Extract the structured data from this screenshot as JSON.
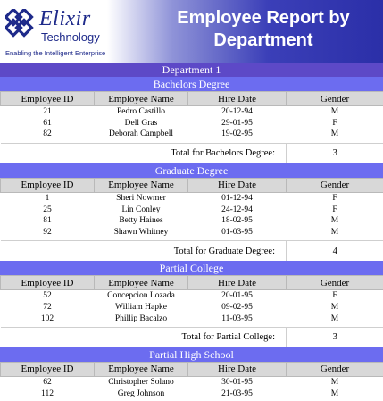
{
  "brand": {
    "name": "Elixir",
    "sub": "Technology",
    "tagline": "Enabling the Intelligent Enterprise",
    "logo_icon": "elixir-knot-icon",
    "accent": "#1e2a8a"
  },
  "report": {
    "title_line1": "Employee Report by",
    "title_line2": "Department",
    "department": "Department 1"
  },
  "columns": [
    "Employee ID",
    "Employee Name",
    "Hire Date",
    "Gender"
  ],
  "groups": [
    {
      "name": "Bachelors Degree",
      "rows": [
        [
          "21",
          "Pedro Castillo",
          "20-12-94",
          "M"
        ],
        [
          "61",
          "Dell Gras",
          "29-01-95",
          "F"
        ],
        [
          "82",
          "Deborah Campbell",
          "19-02-95",
          "M"
        ]
      ],
      "total_label": "Total for Bachelors Degree:",
      "total": "3"
    },
    {
      "name": "Graduate Degree",
      "rows": [
        [
          "1",
          "Sheri Nowmer",
          "01-12-94",
          "F"
        ],
        [
          "25",
          "Lin Conley",
          "24-12-94",
          "F"
        ],
        [
          "81",
          "Betty Haines",
          "18-02-95",
          "M"
        ],
        [
          "92",
          "Shawn Whitney",
          "01-03-95",
          "M"
        ]
      ],
      "total_label": "Total for Graduate Degree:",
      "total": "4"
    },
    {
      "name": "Partial College",
      "rows": [
        [
          "52",
          "Concepcion Lozada",
          "20-01-95",
          "F"
        ],
        [
          "72",
          "William Hapke",
          "09-02-95",
          "M"
        ],
        [
          "102",
          "Phillip Bacalzo",
          "11-03-95",
          "M"
        ]
      ],
      "total_label": "Total for Partial College:",
      "total": "3"
    },
    {
      "name": "Partial High School",
      "rows": [
        [
          "62",
          "Christopher Solano",
          "30-01-95",
          "M"
        ],
        [
          "112",
          "Greg Johnson",
          "21-03-95",
          "M"
        ]
      ]
    }
  ],
  "colors": {
    "department_bar": "#5d49c7",
    "group_bar": "#6c6cf0",
    "header_cell": "#d8d8d8"
  }
}
